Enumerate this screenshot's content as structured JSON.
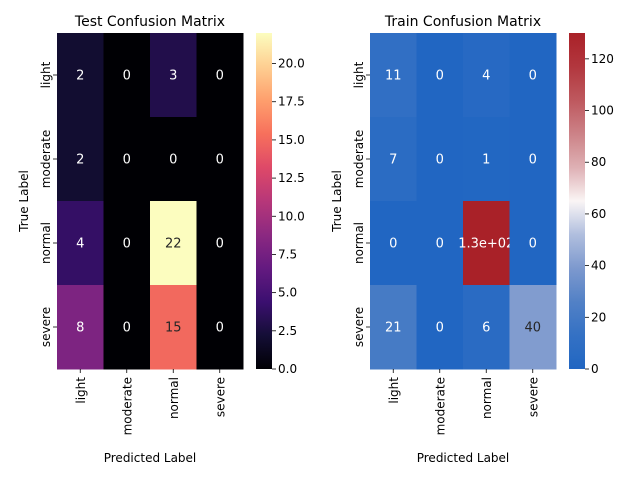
{
  "chart_data": [
    {
      "type": "heatmap",
      "title": "Test Confusion Matrix",
      "xlabel": "Predicted Label",
      "ylabel": "True Label",
      "x_categories": [
        "light",
        "moderate",
        "normal",
        "severe"
      ],
      "y_categories": [
        "light",
        "moderate",
        "normal",
        "severe"
      ],
      "values": [
        [
          2,
          0,
          3,
          0
        ],
        [
          2,
          0,
          0,
          0
        ],
        [
          4,
          0,
          22,
          0
        ],
        [
          8,
          0,
          15,
          0
        ]
      ],
      "annotations": [
        [
          "2",
          "0",
          "3",
          "0"
        ],
        [
          "2",
          "0",
          "0",
          "0"
        ],
        [
          "4",
          "0",
          "22",
          "0"
        ],
        [
          "8",
          "0",
          "15",
          "0"
        ]
      ],
      "colormap": "magma",
      "colorbar": {
        "range": [
          0,
          22
        ],
        "ticks": [
          0,
          2.5,
          5,
          7.5,
          10,
          12.5,
          15,
          17.5,
          20
        ],
        "tick_labels": [
          "0.0",
          "2.5",
          "5.0",
          "7.5",
          "10.0",
          "12.5",
          "15.0",
          "17.5",
          "20.0"
        ]
      }
    },
    {
      "type": "heatmap",
      "title": "Train Confusion Matrix",
      "xlabel": "Predicted Label",
      "ylabel": "True Label",
      "x_categories": [
        "light",
        "moderate",
        "normal",
        "severe"
      ],
      "y_categories": [
        "light",
        "moderate",
        "normal",
        "severe"
      ],
      "values": [
        [
          11,
          0,
          4,
          0
        ],
        [
          7,
          0,
          1,
          0
        ],
        [
          0,
          0,
          130,
          0
        ],
        [
          21,
          0,
          6,
          40
        ]
      ],
      "annotations": [
        [
          "11",
          "0",
          "4",
          "0"
        ],
        [
          "7",
          "0",
          "1",
          "0"
        ],
        [
          "0",
          "0",
          "1.3e+02",
          "0"
        ],
        [
          "21",
          "0",
          "6",
          "40"
        ]
      ],
      "colormap": "vlag",
      "colorbar": {
        "range": [
          0,
          130
        ],
        "ticks": [
          0,
          20,
          40,
          60,
          80,
          100,
          120
        ],
        "tick_labels": [
          "0",
          "20",
          "40",
          "60",
          "80",
          "100",
          "120"
        ]
      }
    }
  ]
}
